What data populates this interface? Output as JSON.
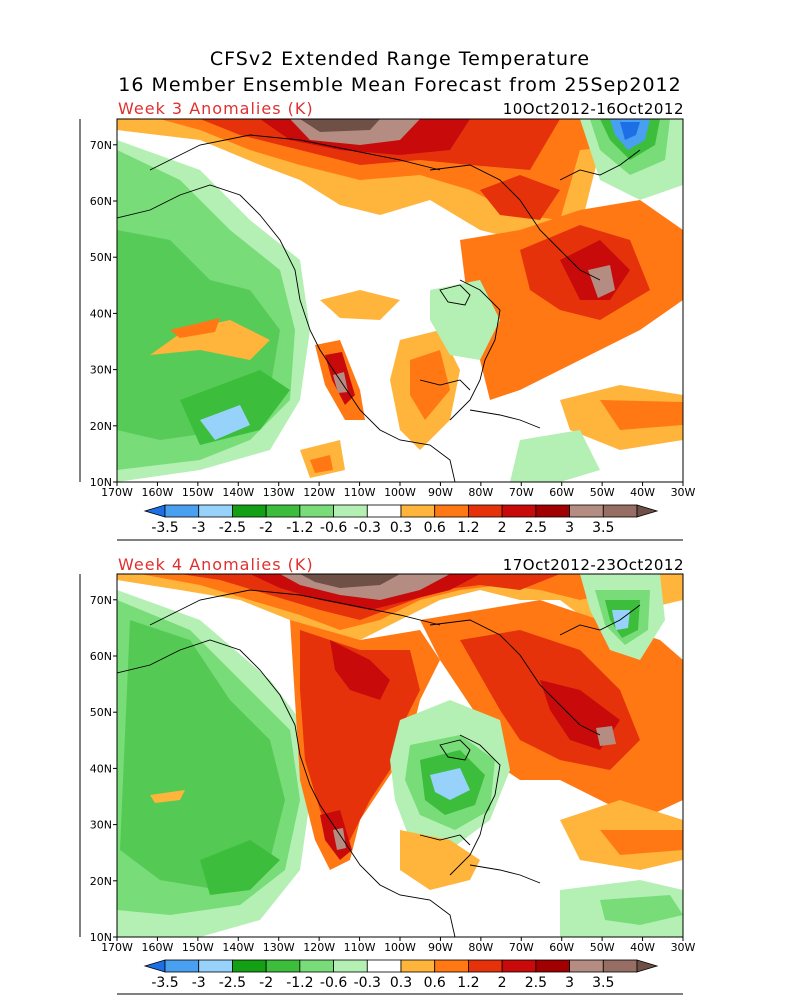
{
  "title_line1": "CFSv2 Extended Range Temperature",
  "title_line2": "16 Member Ensemble Mean Forecast from 25Sep2012",
  "panels": [
    {
      "label": "Week 3 Anomalies (K)",
      "dates": "10Oct2012-16Oct2012"
    },
    {
      "label": "Week 4 Anomalies (K)",
      "dates": "17Oct2012-23Oct2012"
    }
  ],
  "lat_ticks": [
    "70N",
    "60N",
    "50N",
    "40N",
    "30N",
    "20N",
    "10N"
  ],
  "lon_ticks": [
    "170W",
    "160W",
    "150W",
    "140W",
    "130W",
    "120W",
    "110W",
    "100W",
    "90W",
    "80W",
    "70W",
    "60W",
    "50W",
    "40W",
    "30W"
  ],
  "colorbar": {
    "labels": [
      "-3.5",
      "-3",
      "-2.5",
      "-2",
      "-1.2",
      "-0.6",
      "-0.3",
      "0.3",
      "0.6",
      "1.2",
      "2",
      "2.5",
      "3",
      "3.5"
    ],
    "colors": [
      "#1e6ee6",
      "#4aa0f0",
      "#96d2fa",
      "#14a014",
      "#3cbe3c",
      "#78dc78",
      "#b4f0b4",
      "#ffffff",
      "#ffb43c",
      "#ff7814",
      "#e6320a",
      "#c80a0a",
      "#a00000",
      "#b48c82",
      "#966e64",
      "#6e5046"
    ]
  }
}
